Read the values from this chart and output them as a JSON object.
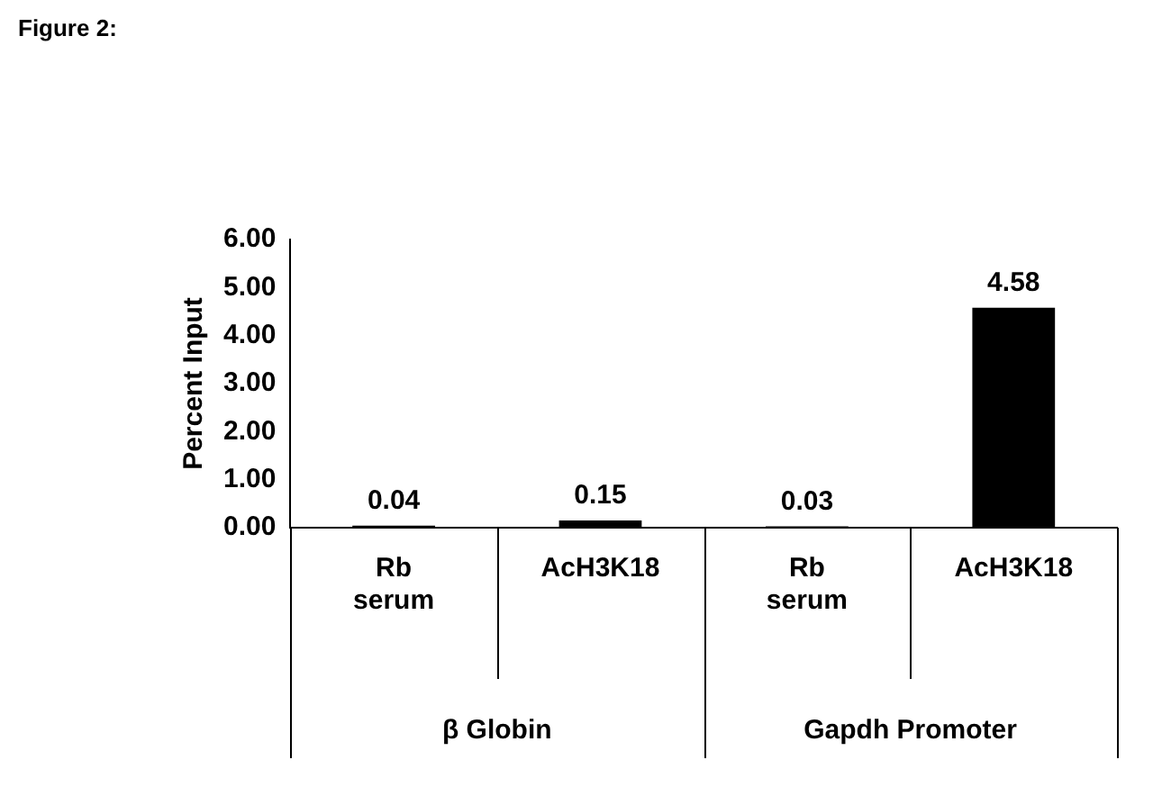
{
  "chart_data": {
    "type": "bar",
    "title": "Figure 2:",
    "ylabel": "Percent Input",
    "categories": [
      "Rb serum",
      "AcH3K18",
      "Rb serum",
      "AcH3K18"
    ],
    "values": [
      0.04,
      0.15,
      0.03,
      4.58
    ],
    "color": "#000000",
    "ylim": [
      0,
      6
    ],
    "yticks": [
      {
        "value": 0,
        "label": "0.00"
      },
      {
        "value": 1,
        "label": "1.00"
      },
      {
        "value": 2,
        "label": "2.00"
      },
      {
        "value": 3,
        "label": "3.00"
      },
      {
        "value": 4,
        "label": "4.00"
      },
      {
        "value": 5,
        "label": "5.00"
      },
      {
        "value": 6,
        "label": "6.00"
      }
    ],
    "annotations": [
      "β Globin",
      "Gapdh Promoter"
    ],
    "data_labels": true,
    "grid": false,
    "legend": false
  }
}
